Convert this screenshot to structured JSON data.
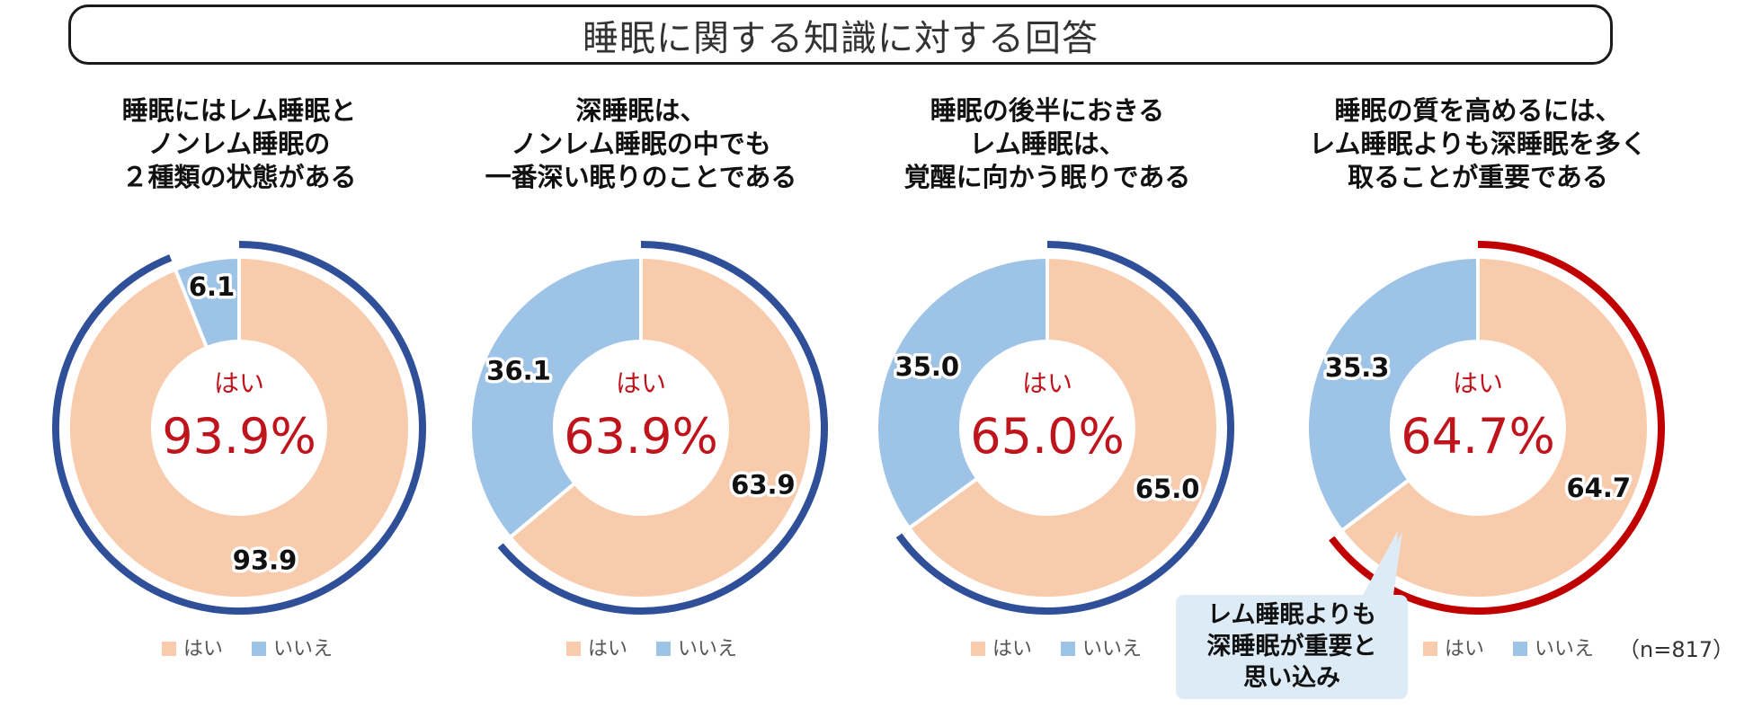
{
  "title": "睡眠に関する知識に対する回答",
  "n_note": "（n=817）",
  "legend": {
    "yes": "はい",
    "no": "いいえ"
  },
  "colors": {
    "yes": "#f8cbad",
    "no": "#9dc3e6",
    "ring_blue": "#2f4f99",
    "ring_red": "#c00000",
    "accent_text": "#c0141c",
    "callout_bg": "#ddebf7"
  },
  "callout": {
    "lines": [
      "レム睡眠よりも",
      "深睡眠が重要と",
      "思い込み"
    ]
  },
  "chart_data": [
    {
      "type": "pie",
      "title_lines": [
        "睡眠にはレム睡眠と",
        "ノンレム睡眠の",
        "２種類の状態がある"
      ],
      "center_label": "はい",
      "center_value": "93.9%",
      "categories": [
        "はい",
        "いいえ"
      ],
      "values": [
        93.9,
        6.1
      ],
      "value_labels": [
        "93.9",
        "6.1"
      ],
      "highlight": "yes",
      "highlight_color": "blue"
    },
    {
      "type": "pie",
      "title_lines": [
        "深睡眠は、",
        "ノンレム睡眠の中でも",
        "一番深い眠りのことである"
      ],
      "center_label": "はい",
      "center_value": "63.9%",
      "categories": [
        "はい",
        "いいえ"
      ],
      "values": [
        63.9,
        36.1
      ],
      "value_labels": [
        "63.9",
        "36.1"
      ],
      "highlight": "yes",
      "highlight_color": "blue"
    },
    {
      "type": "pie",
      "title_lines": [
        "睡眠の後半におきる",
        "レム睡眠は、",
        "覚醒に向かう眠りである"
      ],
      "center_label": "はい",
      "center_value": "65.0%",
      "categories": [
        "はい",
        "いいえ"
      ],
      "values": [
        65.0,
        35.0
      ],
      "value_labels": [
        "65.0",
        "35.0"
      ],
      "highlight": "yes",
      "highlight_color": "blue"
    },
    {
      "type": "pie",
      "title_lines": [
        "睡眠の質を高めるには、",
        "レム睡眠よりも深睡眠を多く",
        "取ることが重要である"
      ],
      "center_label": "はい",
      "center_value": "64.7%",
      "categories": [
        "はい",
        "いいえ"
      ],
      "values": [
        64.7,
        35.3
      ],
      "value_labels": [
        "64.7",
        "35.3"
      ],
      "highlight": "yes",
      "highlight_color": "red"
    }
  ]
}
